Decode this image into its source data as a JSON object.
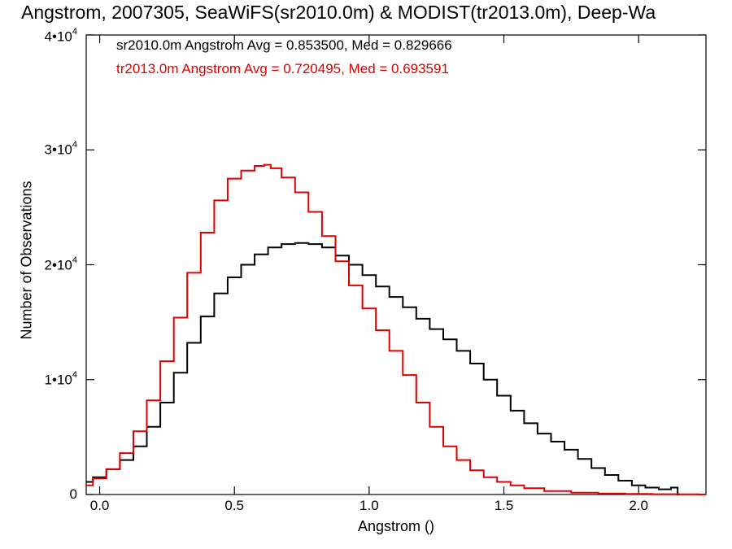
{
  "chart_data": {
    "type": "line",
    "title": "Angstrom, 2007305, SeaWiFS(sr2010.0m) & MODIST(tr2013.0m), Deep-Wa",
    "xlabel": "Angstrom ()",
    "ylabel": "Number of Observations",
    "xlim": [
      -0.05,
      2.25
    ],
    "ylim": [
      0,
      40000
    ],
    "x_ticks": [
      {
        "v": 0.0,
        "label": "0.0"
      },
      {
        "v": 0.5,
        "label": "0.5"
      },
      {
        "v": 1.0,
        "label": "1.0"
      },
      {
        "v": 1.5,
        "label": "1.5"
      },
      {
        "v": 2.0,
        "label": "2.0"
      }
    ],
    "y_ticks": [
      {
        "v": 0,
        "label": "0",
        "exp": ""
      },
      {
        "v": 10000,
        "label": "1•10",
        "exp": "4"
      },
      {
        "v": 20000,
        "label": "2•10",
        "exp": "4"
      },
      {
        "v": 30000,
        "label": "3•10",
        "exp": "4"
      },
      {
        "v": 40000,
        "label": "4•10",
        "exp": "4"
      }
    ],
    "grid": false,
    "legend_placement": "top-left",
    "legend": [
      "sr2010.0m Angstrom Avg = 0.853500, Med = 0.829666",
      "tr2013.0m Angstrom Avg = 0.720495, Med = 0.693591"
    ],
    "series": [
      {
        "color": "#000000",
        "x": [
          -0.05,
          0.0,
          0.05,
          0.1,
          0.15,
          0.2,
          0.25,
          0.3,
          0.35,
          0.4,
          0.45,
          0.5,
          0.55,
          0.6,
          0.65,
          0.7,
          0.75,
          0.8,
          0.85,
          0.9,
          0.95,
          1.0,
          1.05,
          1.1,
          1.15,
          1.2,
          1.25,
          1.3,
          1.35,
          1.4,
          1.45,
          1.5,
          1.55,
          1.6,
          1.65,
          1.7,
          1.75,
          1.8,
          1.85,
          1.9,
          1.95,
          2.0,
          2.05,
          2.1,
          2.14,
          2.15
        ],
        "values": [
          1100,
          1500,
          2200,
          3000,
          4200,
          5900,
          8000,
          10600,
          13200,
          15500,
          17500,
          18900,
          20000,
          20900,
          21500,
          21800,
          21900,
          21800,
          21500,
          20800,
          20000,
          19100,
          18100,
          17200,
          16300,
          15300,
          14400,
          13500,
          12500,
          11400,
          10000,
          8600,
          7300,
          6200,
          5300,
          4600,
          3900,
          3100,
          2300,
          1700,
          1200,
          800,
          600,
          450,
          600,
          0
        ]
      },
      {
        "color": "#e00000",
        "x": [
          -0.05,
          0.0,
          0.05,
          0.1,
          0.15,
          0.2,
          0.25,
          0.3,
          0.35,
          0.4,
          0.45,
          0.5,
          0.55,
          0.6,
          0.62,
          0.65,
          0.7,
          0.75,
          0.8,
          0.85,
          0.9,
          0.95,
          1.0,
          1.05,
          1.1,
          1.15,
          1.2,
          1.25,
          1.3,
          1.35,
          1.4,
          1.45,
          1.5,
          1.55,
          1.6,
          1.7,
          1.8,
          1.9,
          2.0,
          2.1,
          2.2,
          2.25
        ],
        "values": [
          800,
          1400,
          2200,
          3600,
          5500,
          8200,
          11600,
          15400,
          19300,
          22800,
          25600,
          27500,
          28200,
          28600,
          28700,
          28400,
          27600,
          26300,
          24600,
          22500,
          20300,
          18200,
          16200,
          14300,
          12500,
          10400,
          8000,
          5900,
          4200,
          3000,
          2100,
          1500,
          1100,
          800,
          550,
          300,
          160,
          90,
          50,
          30,
          15,
          10
        ]
      }
    ]
  }
}
